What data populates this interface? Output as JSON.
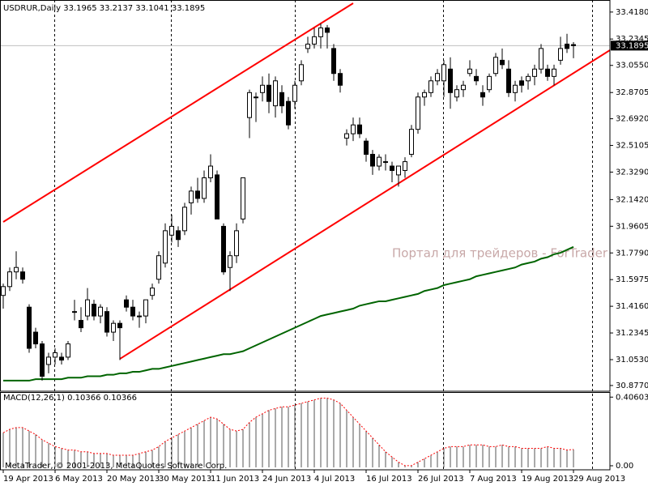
{
  "chart_data": {
    "type": "candlestick",
    "header": "USDRUR,Daily  33.1965 33.2137 33.1041 33.1895",
    "categories": [
      "19 Apr 2013",
      null,
      null,
      null,
      null,
      null,
      null,
      null,
      "6 May 2013",
      null,
      null,
      null,
      null,
      null,
      null,
      null,
      "20 May 2013",
      null,
      null,
      null,
      null,
      null,
      null,
      null,
      "30 May 2013",
      null,
      null,
      null,
      null,
      null,
      null,
      null,
      "11 Jun 2013",
      null,
      null,
      null,
      null,
      null,
      null,
      null,
      "24 Jun 2013",
      null,
      null,
      null,
      null,
      null,
      null,
      null,
      "4 Jul 2013",
      null,
      null,
      null,
      null,
      null,
      null,
      null,
      "16 Jul 2013",
      null,
      null,
      null,
      null,
      null,
      null,
      null,
      "26 Jul 2013",
      null,
      null,
      null,
      null,
      null,
      null,
      null,
      "7 Aug 2013",
      null,
      null,
      null,
      null,
      null,
      null,
      null,
      "19 Aug 2013",
      null,
      null,
      null,
      null,
      null,
      null,
      null,
      "29 Aug 2013"
    ],
    "open": [
      31.49,
      31.55,
      31.65,
      31.65,
      31.41,
      31.24,
      31.16,
      31.02,
      31.07,
      31.07,
      31.07,
      31.38,
      31.32,
      31.35,
      31.43,
      31.35,
      31.38,
      31.24,
      31.3,
      31.46,
      31.41,
      31.35,
      31.35,
      31.49,
      31.6,
      31.71,
      31.9,
      31.93,
      31.93,
      32.12,
      32.2,
      32.15,
      32.29,
      32.31,
      31.96,
      31.68,
      31.76,
      32.01,
      32.7,
      32.84,
      32.87,
      32.92,
      32.78,
      32.87,
      32.81,
      32.81,
      32.95,
      33.17,
      33.2,
      33.25,
      33.31,
      33.17,
      33.0,
      32.56,
      32.59,
      32.65,
      32.54,
      32.45,
      32.37,
      32.4,
      32.37,
      32.31,
      32.34,
      32.45,
      32.62,
      32.84,
      32.87,
      32.95,
      32.95,
      33.03,
      32.84,
      32.89,
      33.0,
      32.98,
      32.87,
      32.89,
      33.0,
      33.09,
      33.03,
      32.87,
      32.95,
      32.95,
      32.98,
      33.03,
      33.03,
      32.98,
      33.09,
      33.2,
      33.1965
    ],
    "high": [
      31.57,
      31.68,
      31.79,
      31.68,
      31.43,
      31.27,
      31.18,
      31.1,
      31.13,
      31.1,
      31.18,
      31.46,
      31.41,
      31.54,
      31.46,
      31.43,
      31.41,
      31.32,
      31.32,
      31.49,
      31.46,
      31.38,
      31.46,
      31.57,
      31.79,
      31.98,
      32.04,
      31.96,
      32.12,
      32.23,
      32.29,
      32.34,
      32.45,
      32.34,
      31.98,
      31.79,
      31.98,
      32.29,
      32.89,
      32.87,
      32.98,
      33.0,
      32.98,
      32.92,
      32.84,
      32.95,
      33.09,
      33.25,
      33.31,
      33.34,
      33.33,
      33.2,
      33.03,
      32.62,
      32.7,
      32.7,
      32.56,
      32.48,
      32.45,
      32.45,
      32.4,
      32.37,
      32.43,
      32.65,
      32.87,
      32.89,
      32.98,
      33.03,
      33.09,
      33.11,
      32.92,
      32.95,
      33.09,
      33.03,
      32.92,
      33.0,
      33.14,
      33.17,
      33.09,
      32.95,
      32.98,
      33.0,
      33.06,
      33.2,
      33.06,
      33.06,
      33.25,
      33.27,
      33.2137
    ],
    "low": [
      31.4,
      31.52,
      31.6,
      31.57,
      31.1,
      31.13,
      30.91,
      30.96,
      31.02,
      31.02,
      31.05,
      31.32,
      31.24,
      31.32,
      31.32,
      31.3,
      31.21,
      31.18,
      31.05,
      31.38,
      31.32,
      31.27,
      31.3,
      31.46,
      31.57,
      31.68,
      31.85,
      31.82,
      31.9,
      32.04,
      32.12,
      32.12,
      32.26,
      32.01,
      31.63,
      31.52,
      31.71,
      31.98,
      32.56,
      32.67,
      32.81,
      32.73,
      32.7,
      32.73,
      32.62,
      32.76,
      32.92,
      33.14,
      33.17,
      33.17,
      33.17,
      32.95,
      32.87,
      32.51,
      32.54,
      32.56,
      32.4,
      32.31,
      32.34,
      32.34,
      32.26,
      32.23,
      32.29,
      32.43,
      32.59,
      32.78,
      32.84,
      32.92,
      32.84,
      32.76,
      32.81,
      32.84,
      32.98,
      32.92,
      32.78,
      32.87,
      32.98,
      33.03,
      32.84,
      32.81,
      32.87,
      32.89,
      32.92,
      33.0,
      32.95,
      32.92,
      33.06,
      33.14,
      33.1041
    ],
    "close": [
      31.55,
      31.65,
      31.68,
      31.6,
      31.13,
      31.16,
      30.94,
      31.07,
      31.1,
      31.05,
      31.16,
      31.38,
      31.27,
      31.46,
      31.35,
      31.41,
      31.24,
      31.3,
      31.27,
      31.41,
      31.35,
      31.35,
      31.46,
      31.54,
      31.76,
      31.93,
      31.96,
      31.87,
      32.09,
      32.2,
      32.15,
      32.29,
      32.37,
      32.01,
      31.65,
      31.76,
      31.93,
      32.29,
      32.87,
      32.84,
      32.92,
      32.81,
      32.95,
      32.78,
      32.65,
      32.92,
      33.06,
      33.2,
      33.25,
      33.31,
      33.28,
      33.0,
      32.92,
      32.59,
      32.65,
      32.59,
      32.45,
      32.37,
      32.43,
      32.4,
      32.34,
      32.37,
      32.4,
      32.62,
      32.84,
      32.87,
      32.95,
      33.0,
      33.06,
      32.87,
      32.89,
      32.92,
      33.03,
      32.95,
      32.84,
      32.98,
      33.11,
      33.06,
      32.87,
      32.92,
      32.92,
      32.98,
      33.03,
      33.17,
      32.98,
      33.03,
      33.17,
      33.17,
      33.1895
    ],
    "bull_color": "#ffffff",
    "bear_color": "#000000",
    "ylim": [
      30.838,
      33.5
    ],
    "yticks": [
      {
        "value": 33.418,
        "label": "33.4180"
      },
      {
        "value": 33.2345,
        "label": "33.2345"
      },
      {
        "value": 33.055,
        "label": "33.0550"
      },
      {
        "value": 32.8705,
        "label": "32.8705"
      },
      {
        "value": 32.692,
        "label": "32.6920"
      },
      {
        "value": 32.5105,
        "label": "32.5105"
      },
      {
        "value": 32.329,
        "label": "32.3290"
      },
      {
        "value": 32.142,
        "label": "32.1420"
      },
      {
        "value": 31.9605,
        "label": "31.9605"
      },
      {
        "value": 31.779,
        "label": "31.7790"
      },
      {
        "value": 31.5975,
        "label": "31.5975"
      },
      {
        "value": 31.416,
        "label": "31.4160"
      },
      {
        "value": 31.2345,
        "label": "31.2345"
      },
      {
        "value": 31.053,
        "label": "31.0530"
      },
      {
        "value": 30.877,
        "label": "30.8770"
      }
    ],
    "last_price": 33.1895,
    "ma": {
      "color": "#006400",
      "values": [
        30.91,
        30.91,
        30.91,
        30.91,
        30.91,
        30.92,
        30.92,
        30.92,
        30.92,
        30.92,
        30.93,
        30.93,
        30.93,
        30.94,
        30.94,
        30.94,
        30.95,
        30.95,
        30.96,
        30.96,
        30.97,
        30.97,
        30.98,
        30.99,
        30.99,
        31.0,
        31.01,
        31.02,
        31.03,
        31.04,
        31.05,
        31.06,
        31.07,
        31.08,
        31.09,
        31.09,
        31.1,
        31.11,
        31.13,
        31.15,
        31.17,
        31.19,
        31.21,
        31.23,
        31.25,
        31.27,
        31.29,
        31.31,
        31.33,
        31.35,
        31.36,
        31.37,
        31.38,
        31.39,
        31.4,
        31.42,
        31.43,
        31.44,
        31.45,
        31.45,
        31.46,
        31.47,
        31.48,
        31.49,
        31.5,
        31.52,
        31.53,
        31.54,
        31.56,
        31.57,
        31.58,
        31.59,
        31.6,
        31.62,
        31.63,
        31.64,
        31.65,
        31.66,
        31.67,
        31.68,
        31.7,
        31.71,
        31.72,
        31.74,
        31.75,
        31.77,
        31.78,
        31.8,
        31.82
      ]
    },
    "trendlines": {
      "color": "#ff0000",
      "lines": [
        {
          "x": [
            0,
            54
          ],
          "y": [
            31.99,
            33.478
          ]
        },
        {
          "x": [
            18,
            94
          ],
          "y": [
            31.058,
            33.169
          ]
        }
      ]
    },
    "macd": {
      "label": "MACD(12,26,1) 0.10366 0.10366",
      "ylim": [
        -0.014,
        0.44
      ],
      "yticks": [
        0.40603,
        {
          "value": 0,
          "label": "0.00"
        }
      ],
      "signal_color": "#ff0000",
      "values": [
        0.2,
        0.22,
        0.23,
        0.23,
        0.21,
        0.19,
        0.16,
        0.14,
        0.12,
        0.11,
        0.1,
        0.1,
        0.09,
        0.09,
        0.08,
        0.08,
        0.08,
        0.07,
        0.07,
        0.07,
        0.07,
        0.08,
        0.09,
        0.1,
        0.12,
        0.15,
        0.17,
        0.19,
        0.21,
        0.23,
        0.25,
        0.27,
        0.29,
        0.28,
        0.25,
        0.22,
        0.21,
        0.22,
        0.26,
        0.29,
        0.31,
        0.33,
        0.34,
        0.35,
        0.35,
        0.36,
        0.37,
        0.38,
        0.39,
        0.4,
        0.4,
        0.39,
        0.37,
        0.33,
        0.29,
        0.25,
        0.21,
        0.17,
        0.13,
        0.09,
        0.06,
        0.03,
        0.01,
        0.01,
        0.03,
        0.05,
        0.07,
        0.09,
        0.11,
        0.12,
        0.12,
        0.12,
        0.13,
        0.13,
        0.13,
        0.12,
        0.12,
        0.13,
        0.12,
        0.12,
        0.11,
        0.11,
        0.11,
        0.11,
        0.12,
        0.11,
        0.11,
        0.1,
        0.10366
      ]
    },
    "watermark": "Портал для трейдеров - ForTrader",
    "copyright": "MetaTrader, © 2001-2013, MetaQuotes Software Corp."
  }
}
